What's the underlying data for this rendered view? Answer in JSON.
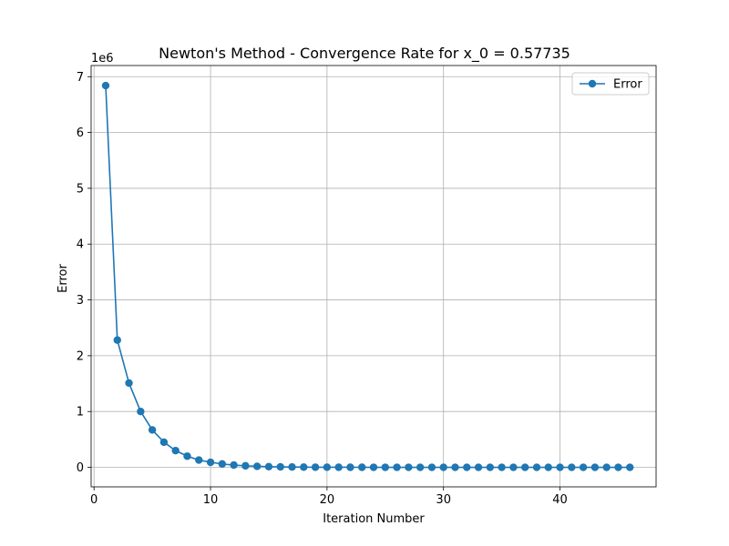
{
  "chart_data": {
    "type": "line",
    "title": "Newton's Method - Convergence Rate for x_0 = 0.57735",
    "xlabel": "Iteration Number",
    "ylabel": "Error",
    "y_offset_label": "1e6",
    "y_scale_factor": 1000000,
    "xlim": [
      -0.25,
      48.25
    ],
    "ylim": [
      -350000,
      7200000
    ],
    "x_ticks": [
      0,
      10,
      20,
      30,
      40
    ],
    "y_ticks": [
      0,
      1,
      2,
      3,
      4,
      5,
      6,
      7
    ],
    "grid": true,
    "legend_position": "top-right",
    "series": [
      {
        "name": "Error",
        "color": "#1f77b4",
        "marker": "circle",
        "x": [
          1,
          2,
          3,
          4,
          5,
          6,
          7,
          8,
          9,
          10,
          11,
          12,
          13,
          14,
          15,
          16,
          17,
          18,
          19,
          20,
          21,
          22,
          23,
          24,
          25,
          26,
          27,
          28,
          29,
          30,
          31,
          32,
          33,
          34,
          35,
          36,
          37,
          38,
          39,
          40,
          41,
          42,
          43,
          44,
          45,
          46
        ],
        "y": [
          6840000,
          2280000,
          1510000,
          1000000,
          670000,
          450000,
          300000,
          200000,
          130000,
          90000,
          60000,
          40000,
          27000,
          18000,
          12000,
          8000,
          5300,
          3500,
          2400,
          1600,
          1050,
          700,
          470,
          310,
          210,
          140,
          90,
          60,
          40,
          27,
          18,
          12,
          8,
          5,
          3.5,
          2.3,
          1.5,
          1,
          0.7,
          0.5,
          0.3,
          0.2,
          0.13,
          0.09,
          0.06,
          0.04
        ]
      }
    ]
  }
}
